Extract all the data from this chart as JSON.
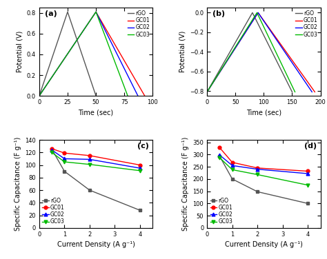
{
  "panel_a": {
    "title": "(a)",
    "xlabel": "Time (sec)",
    "ylabel": "Potential (V)",
    "xlim": [
      0,
      100
    ],
    "ylim": [
      0,
      0.85
    ],
    "xticks": [
      0,
      25,
      50,
      75,
      100
    ],
    "yticks": [
      0.0,
      0.2,
      0.4,
      0.6,
      0.8
    ],
    "curves": {
      "rGO": {
        "color": "#000000",
        "charge_t": 25,
        "discharge_t": 50,
        "v_max": 0.81
      },
      "GC01": {
        "color": "#ff0000",
        "charge_t": 50,
        "discharge_t": 93,
        "v_max": 0.81
      },
      "GC02": {
        "color": "#0000ff",
        "charge_t": 50,
        "discharge_t": 87,
        "v_max": 0.81
      },
      "GC03": {
        "color": "#00bb00",
        "charge_t": 50,
        "discharge_t": 78,
        "v_max": 0.81
      }
    }
  },
  "panel_b": {
    "title": "(b)",
    "xlabel": "Time (sec)",
    "ylabel": "Potential (V)",
    "xlim": [
      0,
      200
    ],
    "ylim": [
      -0.85,
      0.05
    ],
    "xticks": [
      0,
      50,
      100,
      150,
      200
    ],
    "yticks": [
      -0.8,
      -0.6,
      -0.4,
      -0.2,
      0.0
    ],
    "curves": {
      "rGO": {
        "color": "#000000",
        "charge_t": 80,
        "discharge_t": 150,
        "v_min": -0.81
      },
      "GC01": {
        "color": "#ff0000",
        "charge_t": 90,
        "discharge_t": 190,
        "v_min": -0.81
      },
      "GC02": {
        "color": "#0000ff",
        "charge_t": 90,
        "discharge_t": 185,
        "v_min": -0.81
      },
      "GC03": {
        "color": "#00bb00",
        "charge_t": 88,
        "discharge_t": 155,
        "v_min": -0.81
      }
    }
  },
  "panel_c": {
    "title": "(c)",
    "xlabel": "Current Density (A g⁻¹)",
    "ylabel": "Specific Capacitance (F g⁻¹)",
    "xlim": [
      0,
      4.5
    ],
    "ylim": [
      0,
      140
    ],
    "xticks": [
      0,
      1,
      2,
      3,
      4
    ],
    "yticks": [
      0,
      20,
      40,
      60,
      80,
      100,
      120,
      140
    ],
    "curves": {
      "rGO": {
        "color": "#555555",
        "marker": "s",
        "x": [
          0.5,
          1,
          2,
          4
        ],
        "y": [
          125,
          90,
          60,
          28
        ]
      },
      "GC01": {
        "color": "#ff0000",
        "marker": "o",
        "x": [
          0.5,
          1,
          2,
          4
        ],
        "y": [
          126,
          119,
          115,
          100
        ]
      },
      "GC02": {
        "color": "#0000ff",
        "marker": "^",
        "x": [
          0.5,
          1,
          2,
          4
        ],
        "y": [
          124,
          110,
          109,
          95
        ]
      },
      "GC03": {
        "color": "#00bb00",
        "marker": "v",
        "x": [
          0.5,
          1,
          2,
          4
        ],
        "y": [
          120,
          105,
          101,
          91
        ]
      }
    }
  },
  "panel_d": {
    "title": "(d)",
    "xlabel": "Current Density (A g⁻¹)",
    "ylabel": "Specific Capacitance (F g⁻¹)",
    "xlim": [
      0,
      4.5
    ],
    "ylim": [
      0,
      360
    ],
    "xticks": [
      0,
      1,
      2,
      3,
      4
    ],
    "yticks": [
      0,
      50,
      100,
      150,
      200,
      250,
      300,
      350
    ],
    "curves": {
      "rGO": {
        "color": "#555555",
        "marker": "s",
        "x": [
          0.5,
          1,
          2,
          4
        ],
        "y": [
          293,
          200,
          148,
          100
        ]
      },
      "GC01": {
        "color": "#ff0000",
        "marker": "o",
        "x": [
          0.5,
          1,
          2,
          4
        ],
        "y": [
          328,
          268,
          245,
          232
        ]
      },
      "GC02": {
        "color": "#0000ff",
        "marker": "^",
        "x": [
          0.5,
          1,
          2,
          4
        ],
        "y": [
          298,
          255,
          240,
          222
        ]
      },
      "GC03": {
        "color": "#00bb00",
        "marker": "v",
        "x": [
          0.5,
          1,
          2,
          4
        ],
        "y": [
          287,
          238,
          218,
          175
        ]
      }
    }
  },
  "legend_labels": [
    "rGO",
    "GC01",
    "GC02",
    "GC03"
  ],
  "legend_colors": [
    "#555555",
    "#ff0000",
    "#0000ff",
    "#00bb00"
  ],
  "legend_markers_cd": [
    "s",
    "o",
    "^",
    "v"
  ],
  "bg_color": "#ffffff",
  "axes_bg": "#ffffff"
}
